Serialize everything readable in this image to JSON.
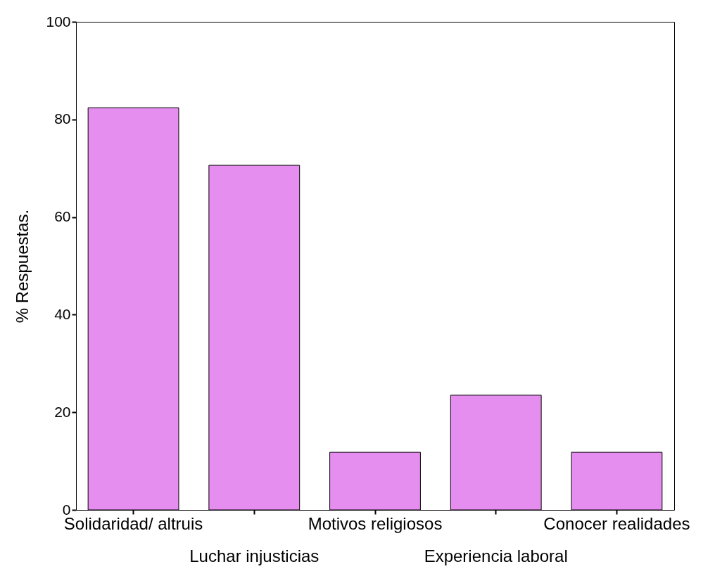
{
  "chart_data": {
    "type": "bar",
    "ylabel": "% Respuestas.",
    "categories": [
      "Solidaridad/ altruis",
      "Luchar  injusticias",
      "Motivos religiosos",
      "Experiencia laboral",
      "Conocer realidades"
    ],
    "values": [
      82.4,
      70.6,
      11.8,
      23.5,
      11.8
    ],
    "color": "#e58ef0",
    "ylim": [
      0,
      100
    ],
    "yticks": [
      0,
      20,
      40,
      60,
      80,
      100
    ],
    "grid": false
  }
}
